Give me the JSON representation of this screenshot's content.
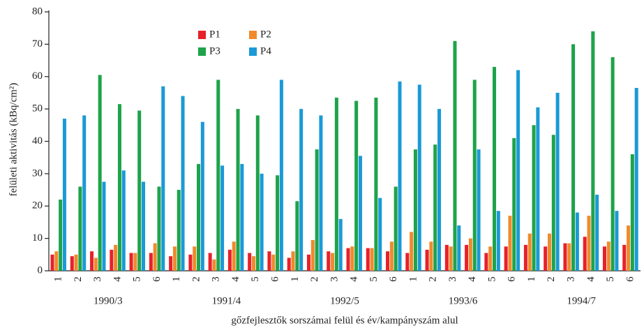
{
  "chart_data": {
    "type": "bar",
    "y_label": "felületi aktivitás (kBq/cm²)",
    "x_label": "gőzfejlesztők sorszámai felül és év/kampányszám alul",
    "categories": [
      "1",
      "2",
      "3",
      "4",
      "5",
      "6",
      "1",
      "2",
      "3",
      "4",
      "5",
      "6",
      "1",
      "2",
      "3",
      "4",
      "5",
      "6",
      "1",
      "2",
      "3",
      "4",
      "5",
      "6",
      "1",
      "2",
      "3",
      "4",
      "5",
      "6"
    ],
    "groups": [
      "1990/3",
      "1991/4",
      "1992/5",
      "1993/6",
      "1994/7"
    ],
    "series": [
      {
        "name": "P1",
        "color": "#e8202a",
        "values": [
          5,
          4.5,
          6,
          6.5,
          5.5,
          5.5,
          4.5,
          5,
          5.5,
          6.5,
          5.5,
          6,
          4,
          5,
          6,
          7,
          7,
          6,
          5.5,
          6.5,
          8,
          8,
          5.5,
          7.5,
          8,
          7.5,
          8.5,
          10.5,
          7.5,
          8
        ]
      },
      {
        "name": "P2",
        "color": "#f08a2c",
        "values": [
          6,
          5,
          4,
          8,
          5.5,
          8.5,
          7.5,
          7.5,
          3.5,
          9,
          4.5,
          5,
          6,
          9.5,
          5.5,
          7.5,
          7,
          9,
          12,
          9,
          7.5,
          10,
          7.5,
          17,
          11.5,
          11.5,
          8.5,
          17,
          9,
          14
        ]
      },
      {
        "name": "P3",
        "color": "#1ea34a",
        "values": [
          22,
          26,
          60.5,
          51.5,
          49.5,
          26,
          25,
          33,
          59,
          50,
          48,
          29.5,
          21.5,
          37.5,
          53.5,
          52.5,
          53.5,
          26,
          37.5,
          39,
          71,
          59,
          63,
          41,
          45,
          42,
          70,
          74,
          66,
          36
        ]
      },
      {
        "name": "P4",
        "color": "#1a9ad6",
        "values": [
          47,
          48,
          27.5,
          31,
          27.5,
          57,
          54,
          46,
          32.5,
          33,
          30,
          59,
          50,
          48,
          16,
          35.5,
          22.5,
          58.5,
          57.5,
          50,
          14,
          37.5,
          18.5,
          62,
          50.5,
          55,
          18,
          23.5,
          18.5,
          56.5
        ]
      }
    ],
    "ylim": [
      0,
      80
    ],
    "yticks": [
      0,
      10,
      20,
      30,
      40,
      50,
      60,
      70,
      80
    ],
    "grid": false
  }
}
